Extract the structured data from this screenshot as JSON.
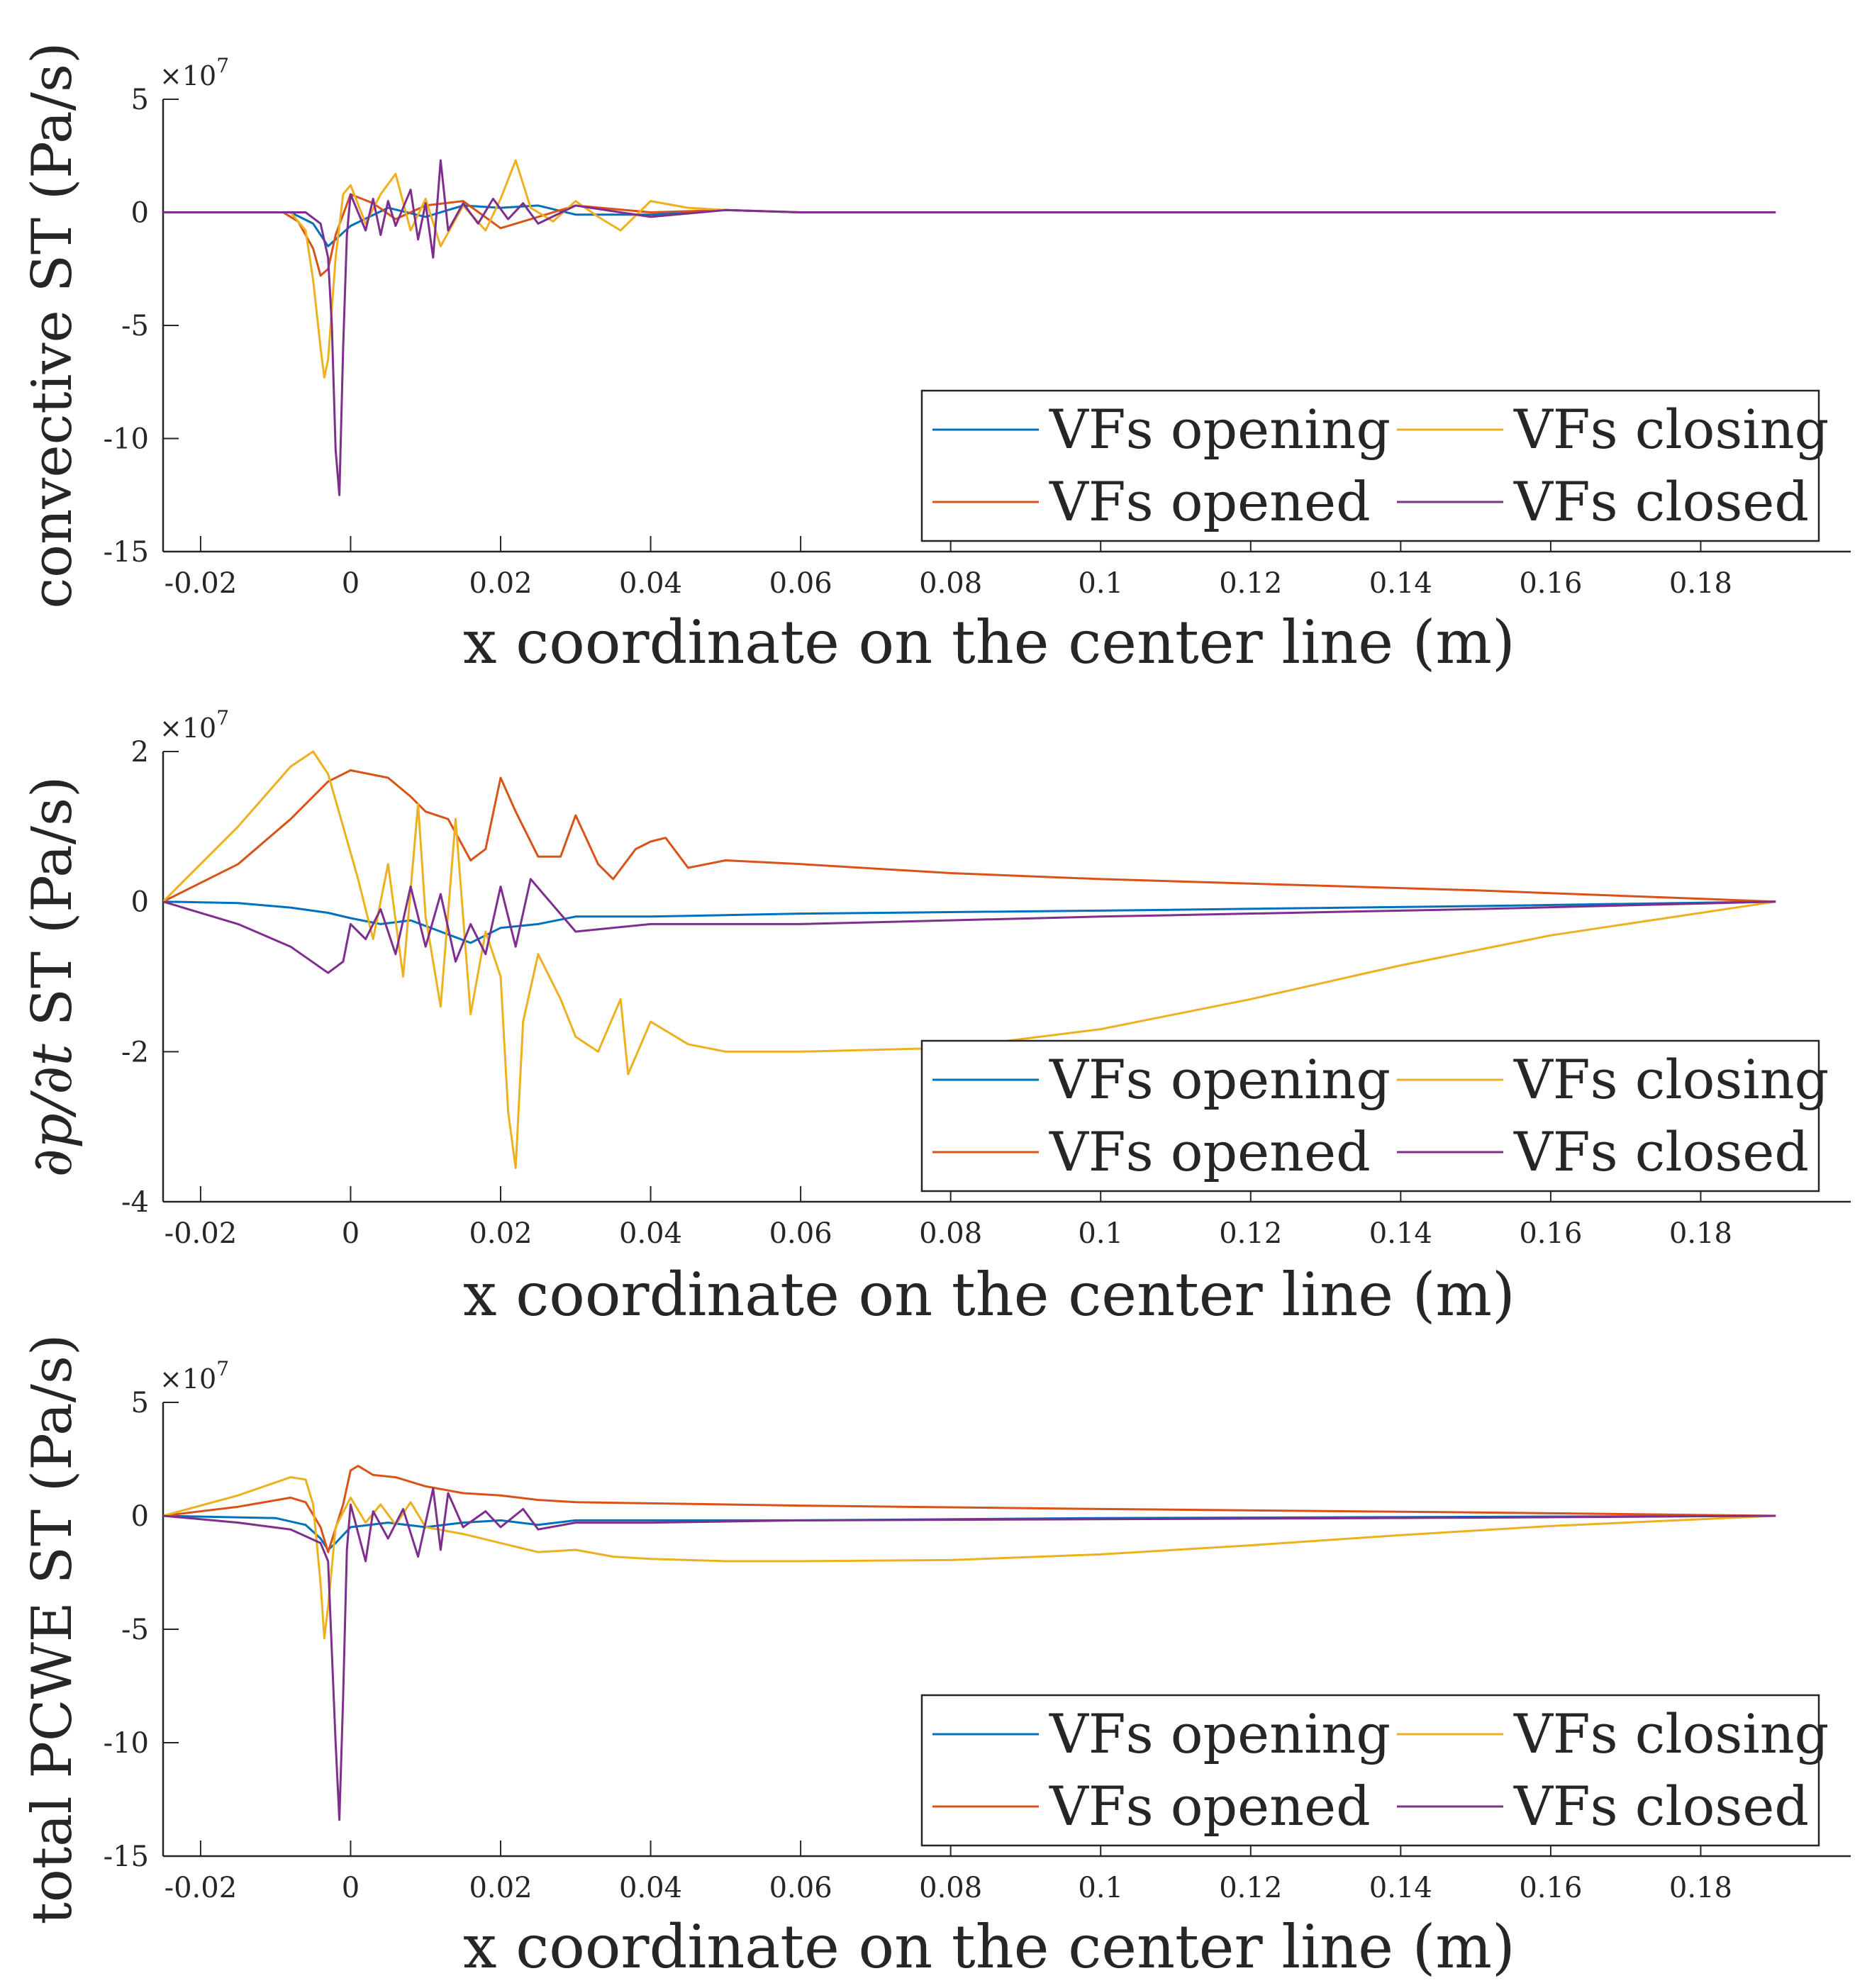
{
  "figure": {
    "legend_entries": [
      {
        "label": "VFs opening",
        "color": "#0072BD"
      },
      {
        "label": "VFs opened",
        "color": "#D95319"
      },
      {
        "label": "VFs closing",
        "color": "#EDB120"
      },
      {
        "label": "VFs closed",
        "color": "#7E2F8E"
      }
    ]
  },
  "chart_data": [
    {
      "type": "line",
      "title": "",
      "xlabel": "x coordinate on the center line (m)",
      "ylabel": "convective ST (Pa/s)",
      "exponent_label": "×10^7",
      "exp_base": "×10",
      "exp_power": "7",
      "xlim": [
        -0.025,
        0.2
      ],
      "ylim": [
        -15,
        5
      ],
      "xticks": [
        -0.02,
        0,
        0.02,
        0.04,
        0.06,
        0.08,
        0.1,
        0.12,
        0.14,
        0.16,
        0.18
      ],
      "xtick_labels": [
        "-0.02",
        "0",
        "0.02",
        "0.04",
        "0.06",
        "0.08",
        "0.1",
        "0.12",
        "0.14",
        "0.16",
        "0.18"
      ],
      "yticks": [
        -15,
        -10,
        -5,
        0,
        5
      ],
      "ytick_labels": [
        "-15",
        "-10",
        "-5",
        "0",
        "5"
      ],
      "legend_location": "lower-right",
      "series": [
        {
          "name": "VFs opening",
          "color": "#0072BD",
          "x": [
            -0.025,
            -0.008,
            -0.005,
            -0.003,
            -0.002,
            0,
            0.005,
            0.01,
            0.015,
            0.02,
            0.025,
            0.03,
            0.04,
            0.05,
            0.06,
            0.19
          ],
          "y": [
            0,
            0,
            -0.5,
            -1.5,
            -1.2,
            -0.6,
            0.2,
            -0.2,
            0.3,
            0.2,
            0.3,
            -0.1,
            -0.1,
            0.1,
            0,
            0
          ]
        },
        {
          "name": "VFs opened",
          "color": "#D95319",
          "x": [
            -0.025,
            -0.009,
            -0.007,
            -0.005,
            -0.004,
            -0.003,
            -0.002,
            0,
            0.003,
            0.006,
            0.01,
            0.015,
            0.02,
            0.025,
            0.03,
            0.04,
            0.05,
            0.06,
            0.19
          ],
          "y": [
            0,
            0,
            -0.4,
            -1.6,
            -2.8,
            -2.5,
            -1.0,
            0.8,
            0.4,
            -0.3,
            0.3,
            0.5,
            -0.7,
            -0.2,
            0.3,
            0,
            0.1,
            0,
            0
          ]
        },
        {
          "name": "VFs closing",
          "color": "#EDB120",
          "x": [
            -0.025,
            -0.008,
            -0.006,
            -0.005,
            -0.004,
            -0.0035,
            -0.003,
            -0.002,
            -0.001,
            0,
            0.002,
            0.004,
            0.006,
            0.008,
            0.01,
            0.012,
            0.015,
            0.018,
            0.02,
            0.022,
            0.024,
            0.027,
            0.03,
            0.033,
            0.036,
            0.04,
            0.045,
            0.05,
            0.06,
            0.19
          ],
          "y": [
            0,
            0,
            -0.8,
            -3.0,
            -6.0,
            -7.3,
            -6.5,
            -2.0,
            0.8,
            1.2,
            -0.5,
            0.8,
            1.7,
            -0.8,
            0.6,
            -1.5,
            0.3,
            -0.8,
            0.6,
            2.3,
            0.2,
            -0.4,
            0.5,
            -0.2,
            -0.8,
            0.5,
            0.2,
            0.1,
            0,
            0
          ]
        },
        {
          "name": "VFs closed",
          "color": "#7E2F8E",
          "x": [
            -0.025,
            -0.006,
            -0.004,
            -0.003,
            -0.0025,
            -0.002,
            -0.0015,
            -0.001,
            -0.0005,
            0,
            0.002,
            0.003,
            0.004,
            0.005,
            0.006,
            0.008,
            0.009,
            0.01,
            0.011,
            0.012,
            0.013,
            0.015,
            0.017,
            0.019,
            0.021,
            0.023,
            0.025,
            0.03,
            0.04,
            0.05,
            0.06,
            0.19
          ],
          "y": [
            0,
            0,
            -0.5,
            -2.0,
            -5.0,
            -10.5,
            -12.5,
            -6.0,
            -1.0,
            0.8,
            -0.8,
            0.6,
            -1.0,
            0.5,
            -0.6,
            1.0,
            -1.2,
            0.4,
            -2.0,
            2.3,
            -0.8,
            0.4,
            -0.5,
            0.6,
            -0.3,
            0.4,
            -0.5,
            0.3,
            -0.2,
            0.1,
            0,
            0
          ]
        }
      ]
    },
    {
      "type": "line",
      "title": "",
      "xlabel": "x coordinate on the center line (m)",
      "ylabel": "∂p/∂t ST (Pa/s)",
      "ylabel_math": "∂p/∂t",
      "ylabel_rest": " ST (Pa/s)",
      "exponent_label": "×10^7",
      "exp_base": "×10",
      "exp_power": "7",
      "xlim": [
        -0.025,
        0.2
      ],
      "ylim": [
        -4,
        2
      ],
      "xticks": [
        -0.02,
        0,
        0.02,
        0.04,
        0.06,
        0.08,
        0.1,
        0.12,
        0.14,
        0.16,
        0.18
      ],
      "xtick_labels": [
        "-0.02",
        "0",
        "0.02",
        "0.04",
        "0.06",
        "0.08",
        "0.1",
        "0.12",
        "0.14",
        "0.16",
        "0.18"
      ],
      "yticks": [
        -4,
        -2,
        0,
        2
      ],
      "ytick_labels": [
        "-4",
        "-2",
        "0",
        "2"
      ],
      "legend_location": "lower-right",
      "series": [
        {
          "name": "VFs opening",
          "color": "#0072BD",
          "x": [
            -0.025,
            -0.015,
            -0.008,
            -0.003,
            0,
            0.004,
            0.008,
            0.012,
            0.016,
            0.02,
            0.025,
            0.03,
            0.04,
            0.06,
            0.1,
            0.15,
            0.19
          ],
          "y": [
            0,
            -0.02,
            -0.08,
            -0.15,
            -0.22,
            -0.3,
            -0.25,
            -0.4,
            -0.55,
            -0.35,
            -0.3,
            -0.2,
            -0.2,
            -0.16,
            -0.12,
            -0.06,
            0
          ]
        },
        {
          "name": "VFs opened",
          "color": "#D95319",
          "x": [
            -0.025,
            -0.015,
            -0.008,
            -0.003,
            0,
            0.005,
            0.008,
            0.01,
            0.013,
            0.016,
            0.018,
            0.02,
            0.022,
            0.025,
            0.028,
            0.03,
            0.033,
            0.035,
            0.038,
            0.04,
            0.042,
            0.045,
            0.05,
            0.06,
            0.08,
            0.1,
            0.15,
            0.19
          ],
          "y": [
            0,
            0.5,
            1.1,
            1.6,
            1.75,
            1.65,
            1.4,
            1.2,
            1.1,
            0.55,
            0.7,
            1.65,
            1.2,
            0.6,
            0.6,
            1.15,
            0.5,
            0.3,
            0.7,
            0.8,
            0.85,
            0.45,
            0.55,
            0.5,
            0.38,
            0.3,
            0.15,
            0
          ]
        },
        {
          "name": "VFs closing",
          "color": "#EDB120",
          "x": [
            -0.025,
            -0.015,
            -0.008,
            -0.005,
            -0.003,
            -0.001,
            0.001,
            0.003,
            0.005,
            0.007,
            0.009,
            0.01,
            0.012,
            0.014,
            0.016,
            0.018,
            0.02,
            0.021,
            0.022,
            0.023,
            0.025,
            0.028,
            0.03,
            0.033,
            0.036,
            0.037,
            0.04,
            0.045,
            0.05,
            0.06,
            0.08,
            0.1,
            0.12,
            0.14,
            0.16,
            0.19
          ],
          "y": [
            0,
            1.0,
            1.8,
            2.0,
            1.7,
            1.0,
            0.3,
            -0.5,
            0.5,
            -1.0,
            1.3,
            -0.2,
            -1.4,
            1.1,
            -1.5,
            -0.4,
            -1.0,
            -2.8,
            -3.55,
            -1.6,
            -0.7,
            -1.3,
            -1.8,
            -2.0,
            -1.3,
            -2.3,
            -1.6,
            -1.9,
            -2.0,
            -2.0,
            -1.95,
            -1.7,
            -1.3,
            -0.85,
            -0.45,
            0
          ]
        },
        {
          "name": "VFs closed",
          "color": "#7E2F8E",
          "x": [
            -0.025,
            -0.015,
            -0.008,
            -0.003,
            -0.001,
            0,
            0.002,
            0.004,
            0.006,
            0.008,
            0.01,
            0.012,
            0.014,
            0.016,
            0.018,
            0.02,
            0.022,
            0.024,
            0.03,
            0.04,
            0.06,
            0.1,
            0.15,
            0.19
          ],
          "y": [
            0,
            -0.3,
            -0.6,
            -0.95,
            -0.8,
            -0.3,
            -0.5,
            -0.1,
            -0.7,
            0.2,
            -0.6,
            0.1,
            -0.8,
            -0.3,
            -0.7,
            0.2,
            -0.6,
            0.3,
            -0.4,
            -0.3,
            -0.3,
            -0.2,
            -0.1,
            0
          ]
        }
      ]
    },
    {
      "type": "line",
      "title": "",
      "xlabel": "x coordinate on the center line (m)",
      "ylabel": "total PCWE ST (Pa/s)",
      "exponent_label": "×10^7",
      "exp_base": "×10",
      "exp_power": "7",
      "xlim": [
        -0.025,
        0.2
      ],
      "ylim": [
        -15,
        5
      ],
      "xticks": [
        -0.02,
        0,
        0.02,
        0.04,
        0.06,
        0.08,
        0.1,
        0.12,
        0.14,
        0.16,
        0.18
      ],
      "xtick_labels": [
        "-0.02",
        "0",
        "0.02",
        "0.04",
        "0.06",
        "0.08",
        "0.1",
        "0.12",
        "0.14",
        "0.16",
        "0.18"
      ],
      "yticks": [
        -15,
        -10,
        -5,
        0,
        5
      ],
      "ytick_labels": [
        "-15",
        "-10",
        "-5",
        "0",
        "5"
      ],
      "legend_location": "lower-right",
      "series": [
        {
          "name": "VFs opening",
          "color": "#0072BD",
          "x": [
            -0.025,
            -0.01,
            -0.006,
            -0.004,
            -0.003,
            -0.002,
            0,
            0.005,
            0.01,
            0.015,
            0.02,
            0.025,
            0.03,
            0.04,
            0.06,
            0.1,
            0.19
          ],
          "y": [
            0,
            -0.1,
            -0.4,
            -1.0,
            -1.5,
            -1.2,
            -0.5,
            -0.3,
            -0.5,
            -0.3,
            -0.2,
            -0.4,
            -0.2,
            -0.2,
            -0.2,
            -0.1,
            0
          ]
        },
        {
          "name": "VFs opened",
          "color": "#D95319",
          "x": [
            -0.025,
            -0.015,
            -0.008,
            -0.006,
            -0.004,
            -0.003,
            -0.001,
            0,
            0.001,
            0.003,
            0.006,
            0.01,
            0.015,
            0.02,
            0.025,
            0.03,
            0.04,
            0.05,
            0.06,
            0.1,
            0.15,
            0.19
          ],
          "y": [
            0,
            0.4,
            0.8,
            0.6,
            -0.5,
            -1.6,
            0.5,
            2.0,
            2.2,
            1.8,
            1.7,
            1.3,
            1.0,
            0.9,
            0.7,
            0.6,
            0.55,
            0.5,
            0.45,
            0.3,
            0.15,
            0
          ]
        },
        {
          "name": "VFs closing",
          "color": "#EDB120",
          "x": [
            -0.025,
            -0.015,
            -0.008,
            -0.006,
            -0.005,
            -0.004,
            -0.0035,
            -0.003,
            -0.002,
            0,
            0.002,
            0.004,
            0.006,
            0.008,
            0.01,
            0.015,
            0.02,
            0.025,
            0.03,
            0.035,
            0.04,
            0.05,
            0.06,
            0.08,
            0.1,
            0.12,
            0.14,
            0.16,
            0.19
          ],
          "y": [
            0,
            0.9,
            1.7,
            1.6,
            0.5,
            -3.0,
            -5.4,
            -4.0,
            -0.5,
            0.8,
            -0.3,
            0.5,
            -0.4,
            0.6,
            -0.5,
            -0.8,
            -1.2,
            -1.6,
            -1.5,
            -1.8,
            -1.9,
            -2.0,
            -2.0,
            -1.95,
            -1.7,
            -1.3,
            -0.85,
            -0.45,
            0
          ]
        },
        {
          "name": "VFs closed",
          "color": "#7E2F8E",
          "x": [
            -0.025,
            -0.015,
            -0.008,
            -0.004,
            -0.003,
            -0.0025,
            -0.002,
            -0.0015,
            -0.001,
            -0.0005,
            0,
            0.002,
            0.003,
            0.005,
            0.007,
            0.009,
            0.011,
            0.012,
            0.013,
            0.015,
            0.018,
            0.02,
            0.023,
            0.025,
            0.03,
            0.04,
            0.06,
            0.1,
            0.15,
            0.19
          ],
          "y": [
            0,
            -0.3,
            -0.6,
            -1.2,
            -2.0,
            -6.0,
            -10.0,
            -13.4,
            -8.0,
            -1.5,
            0.5,
            -2.0,
            0.2,
            -1.0,
            0.3,
            -1.8,
            1.2,
            -1.5,
            1.0,
            -0.5,
            0.2,
            -0.5,
            0.3,
            -0.6,
            -0.3,
            -0.3,
            -0.2,
            -0.15,
            -0.08,
            0
          ]
        }
      ]
    }
  ]
}
